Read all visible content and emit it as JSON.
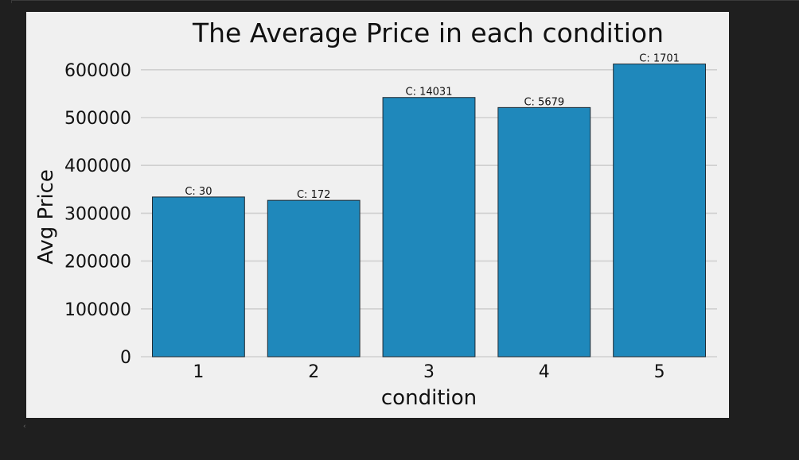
{
  "chart_data": {
    "type": "bar",
    "title": "The Average Price in each condition",
    "xlabel": "condition",
    "ylabel": "Avg Price",
    "categories": [
      "1",
      "2",
      "3",
      "4",
      "5"
    ],
    "values": [
      334000,
      327000,
      542000,
      521000,
      612000
    ],
    "bar_labels": [
      "C: 30",
      "C: 172",
      "C: 14031",
      "C: 5679",
      "C: 1701"
    ],
    "yticks": [
      "0",
      "100000",
      "200000",
      "300000",
      "400000",
      "500000",
      "600000"
    ],
    "ytick_values": [
      0,
      100000,
      200000,
      300000,
      400000,
      500000,
      600000
    ],
    "ylim": [
      0,
      643000
    ],
    "grid": true,
    "colors": {
      "bar": "#1f88bb",
      "bar_edge": "#1f2a33",
      "grid": "#d0d0d0",
      "background": "#f0f0f0",
      "page": "#1f1f1f"
    }
  },
  "ui": {
    "scroll_indicator": "‹"
  }
}
